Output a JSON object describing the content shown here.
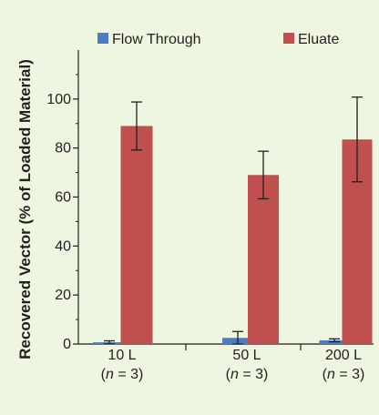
{
  "chart_data": {
    "type": "bar",
    "ylabel": "Recovered Vector (% of Loaded Material)",
    "categories": [
      "10 L",
      "50 L",
      "200 L"
    ],
    "category_notes": [
      {
        "var": "n",
        "rest": " = 3)"
      },
      {
        "var": "n",
        "rest": " = 3)"
      },
      {
        "var": "n",
        "rest": " = 3)"
      }
    ],
    "series": [
      {
        "name": "Flow Through",
        "color": "#4a7ebf",
        "values": [
          0.7,
          2.5,
          1.5
        ],
        "errors": [
          0.6,
          2.6,
          0.6
        ]
      },
      {
        "name": "Eluate",
        "color": "#c0504d",
        "values": [
          89,
          69,
          83.5
        ],
        "errors": [
          9.8,
          9.7,
          17.3
        ]
      }
    ],
    "ylim": [
      0,
      120
    ],
    "yticks": [
      0,
      20,
      40,
      60,
      80,
      100
    ],
    "grid": false,
    "legend_position": "top"
  }
}
